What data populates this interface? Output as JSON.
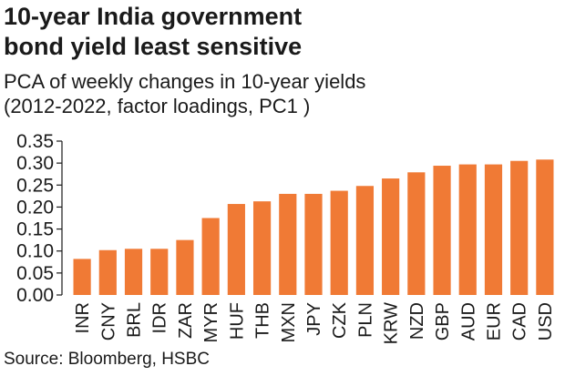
{
  "header": {
    "title_line1": "10-year India government",
    "title_line2": "bond yield least sensitive",
    "subtitle_line1": "PCA of weekly changes in 10-year yields",
    "subtitle_line2": "(2012-2022, factor loadings, PC1 )"
  },
  "footer": {
    "source": "Source: Bloomberg, HSBC"
  },
  "colors": {
    "bar": "#F07A35",
    "text": "#1a1a1a",
    "axis": "#1a1a1a"
  },
  "chart_data": {
    "type": "bar",
    "categories": [
      "INR",
      "CNY",
      "BRL",
      "IDR",
      "ZAR",
      "MYR",
      "HUF",
      "THB",
      "MXN",
      "JPY",
      "CZK",
      "PLN",
      "KRW",
      "NZD",
      "GBP",
      "AUD",
      "EUR",
      "CAD",
      "USD"
    ],
    "values": [
      0.082,
      0.102,
      0.105,
      0.105,
      0.125,
      0.175,
      0.207,
      0.213,
      0.23,
      0.23,
      0.237,
      0.248,
      0.265,
      0.279,
      0.294,
      0.297,
      0.297,
      0.305,
      0.308
    ],
    "yticks": [
      "0.00",
      "0.05",
      "0.10",
      "0.15",
      "0.20",
      "0.25",
      "0.30",
      "0.35"
    ],
    "ylim": [
      0,
      0.35
    ],
    "grid": false
  }
}
